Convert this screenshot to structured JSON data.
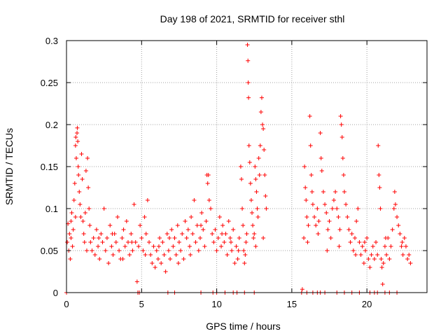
{
  "chart_data": {
    "type": "scatter",
    "title": "Day 198 of 2021, SRMTID for receiver sthl",
    "xlabel": "GPS time / hours",
    "ylabel": "SRMTID / TECUs",
    "xlim": [
      0,
      24
    ],
    "ylim": [
      0,
      0.3
    ],
    "xticks": [
      0,
      5,
      10,
      15,
      20
    ],
    "xtick_labels": [
      "0",
      "5",
      "10",
      "15",
      "20"
    ],
    "yticks": [
      0,
      0.05,
      0.1,
      0.15,
      0.2,
      0.25,
      0.3
    ],
    "ytick_labels": [
      "0",
      "0.05",
      "0.1",
      "0.15",
      "0.2",
      "0.25",
      "0.3"
    ],
    "grid": true,
    "marker": "+",
    "color": "#ff0000",
    "series": [
      {
        "name": "SRMTID",
        "points": [
          [
            0.05,
            0.06
          ],
          [
            0.1,
            0.082
          ],
          [
            0.15,
            0.05
          ],
          [
            0.2,
            0.07
          ],
          [
            0.25,
            0.04
          ],
          [
            0.3,
            0.065
          ],
          [
            0.35,
            0.095
          ],
          [
            0.4,
            0.055
          ],
          [
            0.45,
            0.075
          ],
          [
            0.5,
            0.11
          ],
          [
            0.55,
            0.13
          ],
          [
            0.6,
            0.175
          ],
          [
            0.62,
            0.185
          ],
          [
            0.65,
            0.16
          ],
          [
            0.7,
            0.19
          ],
          [
            0.72,
            0.196
          ],
          [
            0.75,
            0.18
          ],
          [
            0.78,
            0.15
          ],
          [
            0.8,
            0.14
          ],
          [
            0.85,
            0.12
          ],
          [
            0.9,
            0.105
          ],
          [
            0.95,
            0.09
          ],
          [
            1.0,
            0.165
          ],
          [
            1.05,
            0.135
          ],
          [
            1.1,
            0.085
          ],
          [
            1.15,
            0.07
          ],
          [
            1.2,
            0.06
          ],
          [
            1.25,
            0.095
          ],
          [
            1.3,
            0.145
          ],
          [
            1.4,
            0.16
          ],
          [
            1.45,
            0.125
          ],
          [
            1.5,
            0.1
          ],
          [
            1.55,
            0.08
          ],
          [
            1.6,
            0.06
          ],
          [
            1.7,
            0.05
          ],
          [
            1.8,
            0.065
          ],
          [
            1.9,
            0.045
          ],
          [
            2.0,
            0.075
          ],
          [
            2.1,
            0.055
          ],
          [
            2.2,
            0.04
          ],
          [
            2.3,
            0.07
          ],
          [
            2.4,
            0.06
          ],
          [
            2.5,
            0.1
          ],
          [
            2.6,
            0.05
          ],
          [
            2.7,
            0.065
          ],
          [
            2.8,
            0.035
          ],
          [
            2.9,
            0.08
          ],
          [
            3.0,
            0.055
          ],
          [
            3.1,
            0.045
          ],
          [
            3.2,
            0.07
          ],
          [
            3.3,
            0.06
          ],
          [
            3.4,
            0.09
          ],
          [
            3.5,
            0.05
          ],
          [
            3.6,
            0.04
          ],
          [
            3.7,
            0.065
          ],
          [
            3.8,
            0.075
          ],
          [
            3.9,
            0.055
          ],
          [
            4.0,
            0.085
          ],
          [
            4.1,
            0.06
          ],
          [
            4.2,
            0.045
          ],
          [
            4.3,
            0.07
          ],
          [
            4.4,
            0.05
          ],
          [
            4.5,
            0.105
          ],
          [
            4.6,
            0.06
          ],
          [
            4.7,
            0.013
          ],
          [
            4.8,
            0.055
          ],
          [
            4.9,
            0.08
          ],
          [
            5.0,
            0.065
          ],
          [
            5.1,
            0.05
          ],
          [
            5.2,
            0.09
          ],
          [
            5.3,
            0.07
          ],
          [
            5.4,
            0.11
          ],
          [
            5.5,
            0.06
          ],
          [
            5.6,
            0.045
          ],
          [
            5.7,
            0.035
          ],
          [
            5.8,
            0.055
          ],
          [
            5.9,
            0.03
          ],
          [
            6.0,
            0.05
          ],
          [
            6.1,
            0.04
          ],
          [
            6.2,
            0.065
          ],
          [
            6.3,
            0.035
          ],
          [
            6.4,
            0.06
          ],
          [
            6.5,
            0.045
          ],
          [
            6.6,
            0.025
          ],
          [
            6.7,
            0.07
          ],
          [
            6.8,
            0.05
          ],
          [
            6.9,
            0.04
          ],
          [
            7.0,
            0.075
          ],
          [
            7.1,
            0.055
          ],
          [
            7.2,
            0.065
          ],
          [
            7.3,
            0.045
          ],
          [
            7.4,
            0.08
          ],
          [
            7.5,
            0.06
          ],
          [
            7.6,
            0.05
          ],
          [
            7.7,
            0.07
          ],
          [
            7.8,
            0.04
          ],
          [
            7.9,
            0.085
          ],
          [
            8.0,
            0.065
          ],
          [
            8.1,
            0.075
          ],
          [
            8.2,
            0.055
          ],
          [
            8.3,
            0.09
          ],
          [
            8.4,
            0.07
          ],
          [
            8.5,
            0.11
          ],
          [
            8.6,
            0.06
          ],
          [
            8.7,
            0.08
          ],
          [
            8.8,
            0.05
          ],
          [
            8.9,
            0.065
          ],
          [
            9.0,
            0.095
          ],
          [
            9.1,
            0.075
          ],
          [
            9.2,
            0.055
          ],
          [
            9.3,
            0.085
          ],
          [
            9.35,
            0.14
          ],
          [
            9.4,
            0.13
          ],
          [
            9.45,
            0.14
          ],
          [
            9.5,
            0.11
          ],
          [
            9.6,
            0.1
          ],
          [
            9.7,
            0.07
          ],
          [
            9.8,
            0.06
          ],
          [
            9.9,
            0.075
          ],
          [
            10.0,
            0.05
          ],
          [
            10.1,
            0.065
          ],
          [
            10.2,
            0.09
          ],
          [
            10.3,
            0.055
          ],
          [
            10.4,
            0.08
          ],
          [
            10.5,
            0.06
          ],
          [
            10.6,
            0.07
          ],
          [
            10.7,
            0.045
          ],
          [
            10.8,
            0.085
          ],
          [
            10.9,
            0.065
          ],
          [
            11.0,
            0.05
          ],
          [
            11.1,
            0.075
          ],
          [
            11.2,
            0.035
          ],
          [
            11.3,
            0.055
          ],
          [
            11.4,
            0.04
          ],
          [
            11.5,
            0.065
          ],
          [
            11.6,
            0.15
          ],
          [
            11.65,
            0.135
          ],
          [
            11.7,
            0.1
          ],
          [
            11.75,
            0.08
          ],
          [
            11.8,
            0.05
          ],
          [
            11.85,
            0.035
          ],
          [
            11.9,
            0.045
          ],
          [
            11.95,
            0.06
          ],
          [
            12.0,
            0.07
          ],
          [
            12.05,
            0.295
          ],
          [
            12.08,
            0.276
          ],
          [
            12.1,
            0.25
          ],
          [
            12.12,
            0.232
          ],
          [
            12.15,
            0.175
          ],
          [
            12.2,
            0.155
          ],
          [
            12.25,
            0.13
          ],
          [
            12.3,
            0.11
          ],
          [
            12.35,
            0.095
          ],
          [
            12.4,
            0.08
          ],
          [
            12.45,
            0.065
          ],
          [
            12.5,
            0.07
          ],
          [
            12.55,
            0.15
          ],
          [
            12.6,
            0.135
          ],
          [
            12.65,
            0.12
          ],
          [
            12.7,
            0.1
          ],
          [
            12.75,
            0.09
          ],
          [
            12.8,
            0.16
          ],
          [
            12.85,
            0.14
          ],
          [
            12.9,
            0.175
          ],
          [
            12.95,
            0.215
          ],
          [
            13.0,
            0.232
          ],
          [
            13.05,
            0.2
          ],
          [
            13.1,
            0.195
          ],
          [
            13.15,
            0.17
          ],
          [
            13.2,
            0.14
          ],
          [
            13.25,
            0.115
          ],
          [
            13.3,
            0.1
          ],
          [
            15.7,
            0.004
          ],
          [
            15.8,
            0.065
          ],
          [
            15.85,
            0.15
          ],
          [
            15.9,
            0.125
          ],
          [
            15.95,
            0.11
          ],
          [
            16.0,
            0.09
          ],
          [
            16.1,
            0.08
          ],
          [
            16.2,
            0.21
          ],
          [
            16.25,
            0.175
          ],
          [
            16.3,
            0.14
          ],
          [
            16.35,
            0.12
          ],
          [
            16.4,
            0.105
          ],
          [
            16.5,
            0.09
          ],
          [
            16.6,
            0.08
          ],
          [
            16.7,
            0.1
          ],
          [
            16.8,
            0.085
          ],
          [
            16.9,
            0.19
          ],
          [
            16.95,
            0.16
          ],
          [
            17.0,
            0.145
          ],
          [
            17.1,
            0.12
          ],
          [
            17.2,
            0.105
          ],
          [
            17.3,
            0.095
          ],
          [
            17.4,
            0.075
          ],
          [
            17.5,
            0.085
          ],
          [
            17.6,
            0.065
          ],
          [
            17.7,
            0.1
          ],
          [
            17.8,
            0.11
          ],
          [
            17.9,
            0.12
          ],
          [
            18.0,
            0.1
          ],
          [
            18.1,
            0.09
          ],
          [
            18.2,
            0.075
          ],
          [
            18.25,
            0.21
          ],
          [
            18.3,
            0.2
          ],
          [
            18.35,
            0.185
          ],
          [
            18.4,
            0.16
          ],
          [
            18.45,
            0.14
          ],
          [
            18.5,
            0.12
          ],
          [
            18.6,
            0.105
          ],
          [
            18.7,
            0.09
          ],
          [
            18.8,
            0.075
          ],
          [
            18.9,
            0.06
          ],
          [
            19.0,
            0.07
          ],
          [
            19.1,
            0.05
          ],
          [
            19.2,
            0.065
          ],
          [
            19.3,
            0.085
          ],
          [
            19.4,
            0.1
          ],
          [
            19.5,
            0.06
          ],
          [
            19.6,
            0.045
          ],
          [
            19.7,
            0.055
          ],
          [
            19.8,
            0.035
          ],
          [
            19.9,
            0.05
          ],
          [
            20.0,
            0.065
          ],
          [
            20.1,
            0.04
          ],
          [
            20.2,
            0.03
          ],
          [
            20.3,
            0.045
          ],
          [
            20.4,
            0.055
          ],
          [
            20.5,
            0.04
          ],
          [
            20.6,
            0.06
          ],
          [
            20.7,
            0.045
          ],
          [
            20.75,
            0.175
          ],
          [
            20.8,
            0.14
          ],
          [
            20.85,
            0.125
          ],
          [
            20.9,
            0.1
          ],
          [
            20.95,
            0.04
          ],
          [
            21.0,
            0.03
          ],
          [
            21.05,
            0.01
          ],
          [
            21.1,
            0.035
          ],
          [
            21.2,
            0.055
          ],
          [
            21.3,
            0.045
          ],
          [
            21.4,
            0.065
          ],
          [
            21.5,
            0.04
          ],
          [
            21.6,
            0.055
          ],
          [
            21.7,
            0.075
          ],
          [
            21.8,
            0.1
          ],
          [
            21.85,
            0.12
          ],
          [
            21.9,
            0.105
          ],
          [
            22.0,
            0.09
          ],
          [
            22.1,
            0.08
          ],
          [
            22.2,
            0.07
          ],
          [
            22.3,
            0.055
          ],
          [
            22.4,
            0.045
          ],
          [
            22.5,
            0.065
          ],
          [
            22.6,
            0.055
          ],
          [
            22.7,
            0.04
          ],
          [
            22.8,
            0.045
          ],
          [
            22.9,
            0.035
          ],
          [
            0.3,
            0.085
          ],
          [
            0.6,
            0.09
          ],
          [
            1.35,
            0.05
          ],
          [
            2.15,
            0.065
          ],
          [
            3.05,
            0.07
          ],
          [
            3.75,
            0.04
          ],
          [
            4.35,
            0.06
          ],
          [
            5.25,
            0.045
          ],
          [
            6.15,
            0.055
          ],
          [
            6.85,
            0.065
          ],
          [
            7.45,
            0.035
          ],
          [
            8.25,
            0.045
          ],
          [
            8.95,
            0.08
          ],
          [
            10.35,
            0.07
          ],
          [
            10.95,
            0.06
          ],
          [
            11.45,
            0.05
          ],
          [
            12.6,
            0.055
          ],
          [
            13.1,
            0.065
          ],
          [
            16.05,
            0.06
          ],
          [
            16.75,
            0.07
          ],
          [
            17.35,
            0.05
          ],
          [
            18.15,
            0.055
          ],
          [
            19.25,
            0.045
          ],
          [
            19.85,
            0.06
          ],
          [
            21.25,
            0.065
          ],
          [
            22.35,
            0.06
          ],
          [
            0.0,
            0.0
          ],
          [
            4.75,
            0.0
          ],
          [
            4.85,
            0.0
          ],
          [
            6.75,
            0.0
          ],
          [
            7.2,
            0.0
          ],
          [
            8.95,
            0.0
          ],
          [
            9.75,
            0.0
          ],
          [
            10.0,
            0.0
          ],
          [
            10.55,
            0.0
          ],
          [
            11.1,
            0.0
          ],
          [
            11.35,
            0.0
          ],
          [
            11.85,
            0.0
          ],
          [
            12.5,
            0.0
          ],
          [
            15.65,
            0.0
          ],
          [
            16.0,
            0.0
          ],
          [
            16.4,
            0.0
          ],
          [
            16.7,
            0.0
          ],
          [
            16.9,
            0.0
          ],
          [
            17.2,
            0.0
          ],
          [
            18.0,
            0.0
          ],
          [
            18.5,
            0.0
          ],
          [
            19.0,
            0.0
          ],
          [
            19.5,
            0.0
          ],
          [
            20.2,
            0.0
          ],
          [
            20.5,
            0.0
          ],
          [
            20.7,
            0.0
          ],
          [
            21.2,
            0.0
          ],
          [
            21.5,
            0.0
          ],
          [
            22.0,
            0.0
          ]
        ]
      }
    ]
  }
}
